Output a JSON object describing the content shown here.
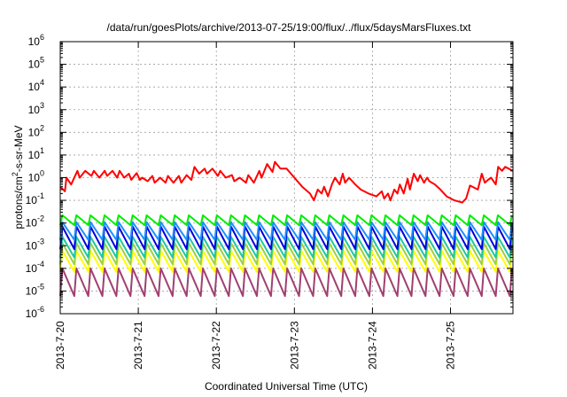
{
  "chart_data": {
    "type": "line",
    "title": "/data/run/goesPlots/archive/2013-07-25/19:00/flux/../flux/5daysMarsFluxes.txt",
    "xlabel": "Coordinated Universal Time (UTC)",
    "ylabel_prefix": "protons/cm",
    "ylabel_sup": "2",
    "ylabel_suffix": "-s-sr-MeV",
    "ylog": true,
    "ylim_exp": [
      -6,
      6
    ],
    "y_ticks": [
      {
        "base": "10",
        "exp": "-6",
        "e": -6
      },
      {
        "base": "10",
        "exp": "-5",
        "e": -5
      },
      {
        "base": "10",
        "exp": "-4",
        "e": -4
      },
      {
        "base": "10",
        "exp": "-3",
        "e": -3
      },
      {
        "base": "10",
        "exp": "-2",
        "e": -2
      },
      {
        "base": "10",
        "exp": "-1",
        "e": -1
      },
      {
        "base": "10",
        "exp": "0",
        "e": 0
      },
      {
        "base": "10",
        "exp": "1",
        "e": 1
      },
      {
        "base": "10",
        "exp": "2",
        "e": 2
      },
      {
        "base": "10",
        "exp": "3",
        "e": 3
      },
      {
        "base": "10",
        "exp": "4",
        "e": 4
      },
      {
        "base": "10",
        "exp": "5",
        "e": 5
      },
      {
        "base": "10",
        "exp": "6",
        "e": 6
      }
    ],
    "x_range_days": [
      0,
      5.8
    ],
    "x_ticks": [
      {
        "label": "2013-7-20",
        "day": 0
      },
      {
        "label": "2013-7-21",
        "day": 1
      },
      {
        "label": "2013-7-22",
        "day": 2
      },
      {
        "label": "2013-7-23",
        "day": 3
      },
      {
        "label": "2013-7-24",
        "day": 4
      },
      {
        "label": "2013-7-25",
        "day": 5
      }
    ],
    "grid": true,
    "series": [
      {
        "color": "#ff0000",
        "x": [
          0,
          0.06,
          0.08,
          0.14,
          0.22,
          0.25,
          0.32,
          0.4,
          0.43,
          0.5,
          0.57,
          0.6,
          0.67,
          0.73,
          0.76,
          0.82,
          0.88,
          0.91,
          0.98,
          1.02,
          1.05,
          1.12,
          1.18,
          1.21,
          1.28,
          1.35,
          1.38,
          1.45,
          1.52,
          1.55,
          1.62,
          1.68,
          1.72,
          1.78,
          1.85,
          1.88,
          1.95,
          2.02,
          2.05,
          2.12,
          2.2,
          2.23,
          2.3,
          2.38,
          2.41,
          2.48,
          2.55,
          2.58,
          2.65,
          2.72,
          2.75,
          2.82,
          2.9,
          3.0,
          3.1,
          3.2,
          3.25,
          3.3,
          3.35,
          3.38,
          3.43,
          3.48,
          3.52,
          3.58,
          3.62,
          3.65,
          3.7,
          3.78,
          3.85,
          3.95,
          4.05,
          4.12,
          4.15,
          4.2,
          4.23,
          4.28,
          4.32,
          4.35,
          4.4,
          4.45,
          4.48,
          4.53,
          4.58,
          4.61,
          4.66,
          4.7,
          4.73,
          4.8,
          4.87,
          4.95,
          5.05,
          5.15,
          5.2,
          5.25,
          5.35,
          5.4,
          5.44,
          5.48,
          5.52,
          5.58,
          5.61,
          5.66,
          5.7,
          5.8
        ],
        "y": [
          0.4,
          0.25,
          1.0,
          0.5,
          2.0,
          1.0,
          2.0,
          1.2,
          2.0,
          1.0,
          2.0,
          1.2,
          2.0,
          1.0,
          2.0,
          1.0,
          1.5,
          0.8,
          1.6,
          0.8,
          1.0,
          0.7,
          1.2,
          0.6,
          1.0,
          0.6,
          1.2,
          0.6,
          1.2,
          0.6,
          1.3,
          0.8,
          3.0,
          1.5,
          2.5,
          1.5,
          2.5,
          1.2,
          2.0,
          1.0,
          1.3,
          0.7,
          1.0,
          0.6,
          1.3,
          0.6,
          2.0,
          1.0,
          4.0,
          1.8,
          5.0,
          2.5,
          2.5,
          1.0,
          0.4,
          0.2,
          0.1,
          0.3,
          0.2,
          0.4,
          0.15,
          0.5,
          1.0,
          0.5,
          1.5,
          0.6,
          1.0,
          0.5,
          0.3,
          0.2,
          0.15,
          0.25,
          0.12,
          0.2,
          0.1,
          0.3,
          0.2,
          0.5,
          0.2,
          0.9,
          0.3,
          1.5,
          0.7,
          1.3,
          0.6,
          1.0,
          0.7,
          0.5,
          0.3,
          0.15,
          0.1,
          0.08,
          0.12,
          0.45,
          0.3,
          1.5,
          0.6,
          0.8,
          1.0,
          0.5,
          3.0,
          2.0,
          3.0,
          2.0
        ]
      },
      {
        "color": "#00ee00",
        "sawtooth": {
          "peak": 0.022,
          "trough": 0.008,
          "period": 0.18
        }
      },
      {
        "color": "#1e90ff",
        "sawtooth": {
          "peak": 0.011,
          "trough": 0.0018,
          "period": 0.18
        }
      },
      {
        "color": "#0000dd",
        "sawtooth": {
          "peak": 0.007,
          "trough": 0.0007,
          "period": 0.18
        }
      },
      {
        "color": "#1ec8a0",
        "sawtooth": {
          "peak": 0.0025,
          "trough": 0.0003,
          "period": 0.18
        }
      },
      {
        "color": "#a0d040",
        "sawtooth": {
          "peak": 0.0013,
          "trough": 0.00015,
          "period": 0.18
        }
      },
      {
        "color": "#ffff00",
        "sawtooth": {
          "peak": 0.0006,
          "trough": 7e-05,
          "period": 0.18
        }
      },
      {
        "color": "#a04070",
        "sawtooth": {
          "peak": 0.0001,
          "trough": 6e-06,
          "period": 0.18
        }
      }
    ]
  }
}
